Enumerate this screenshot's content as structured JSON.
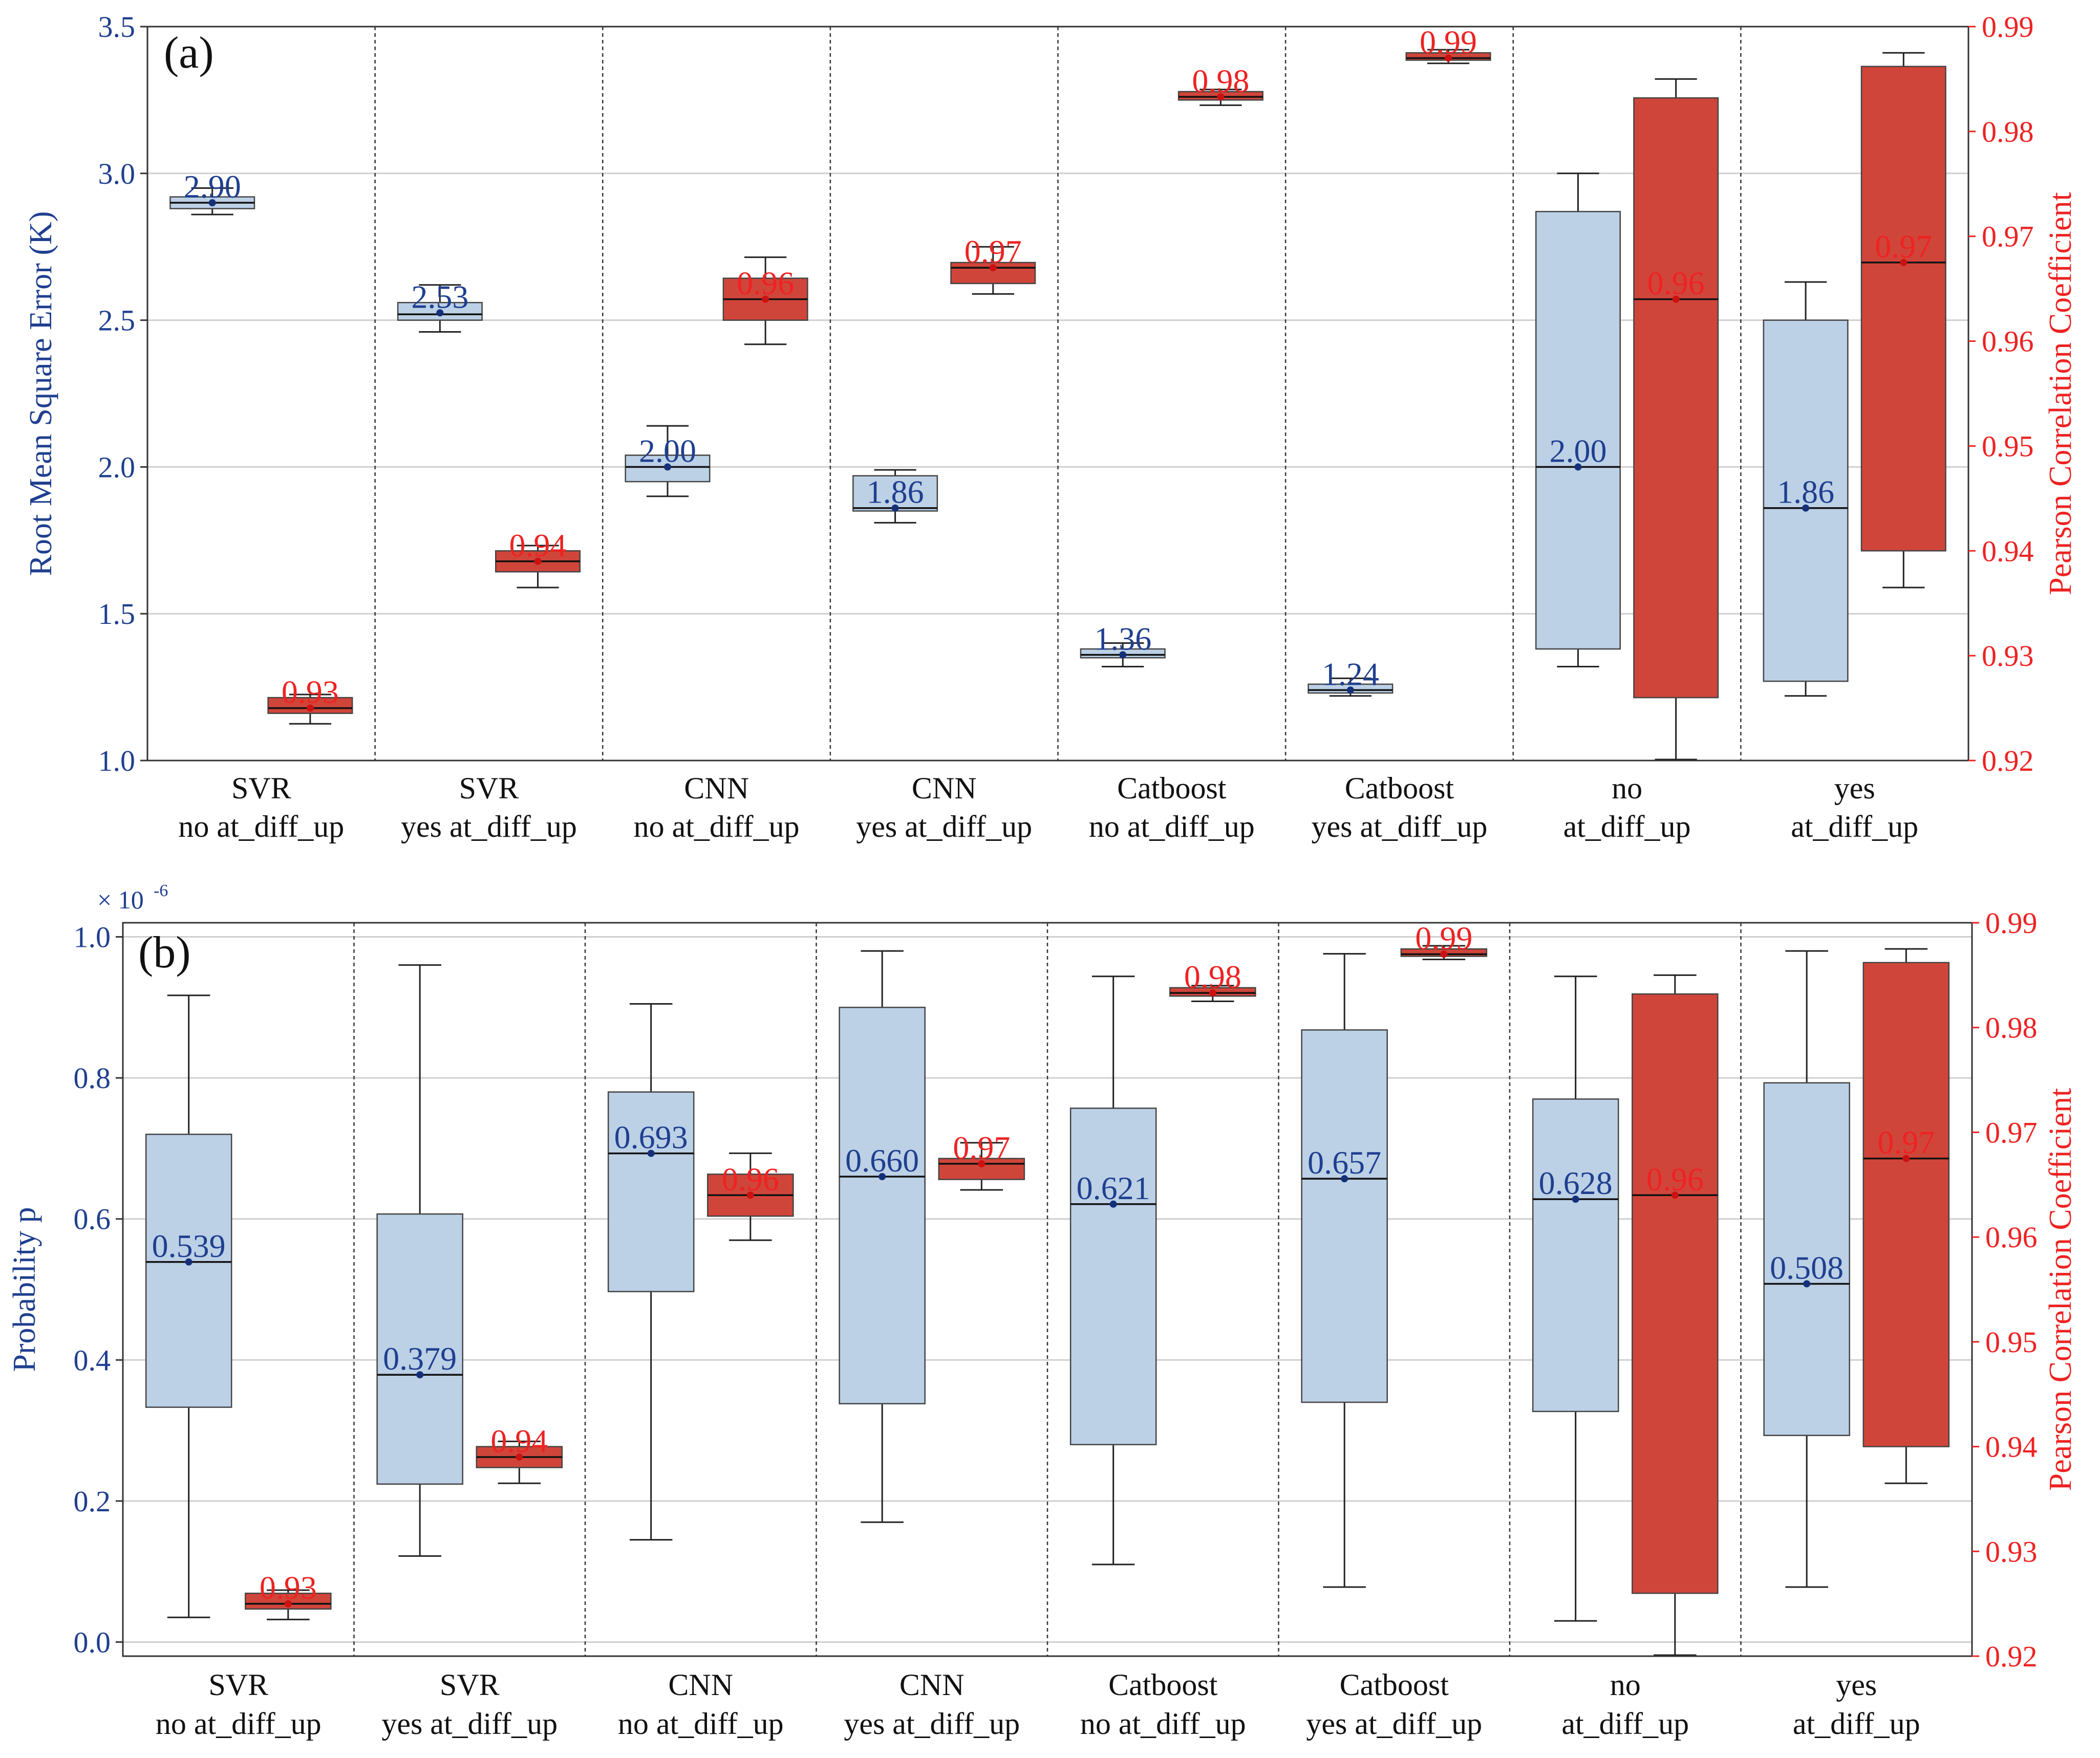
{
  "chart_data": [
    {
      "type": "box",
      "panel_label": "(a)",
      "categories": [
        [
          "SVR",
          "no at_diff_up"
        ],
        [
          "SVR",
          "yes at_diff_up"
        ],
        [
          "CNN",
          "no at_diff_up"
        ],
        [
          "CNN",
          "yes at_diff_up"
        ],
        [
          "Catboost",
          "no at_diff_up"
        ],
        [
          "Catboost",
          "yes at_diff_up"
        ],
        [
          "no",
          "at_diff_up"
        ],
        [
          "yes",
          "at_diff_up"
        ]
      ],
      "left_axis": {
        "label": "Root Mean Square Error (K)",
        "ylim": [
          1.0,
          3.5
        ],
        "ticks": [
          1.0,
          1.5,
          2.0,
          2.5,
          3.0,
          3.5
        ],
        "tick_labels": [
          "1.0",
          "1.5",
          "2.0",
          "2.5",
          "3.0",
          "3.5"
        ],
        "color": "#1f3f8f"
      },
      "right_axis": {
        "label": "Pearson Correlation Coefficient",
        "ylim": [
          0.92,
          0.99
        ],
        "ticks": [
          0.92,
          0.93,
          0.94,
          0.95,
          0.96,
          0.97,
          0.98,
          0.99
        ],
        "tick_labels": [
          "0.92",
          "0.93",
          "0.94",
          "0.95",
          "0.96",
          "0.97",
          "0.98",
          "0.99"
        ],
        "color": "#ee2222"
      },
      "series": [
        {
          "axis": "left",
          "fill": "#bcd0e6",
          "label_color": "#1f3f8f",
          "boxes": [
            {
              "whisker_low": 2.86,
              "q1": 2.88,
              "median": 2.9,
              "q3": 2.92,
              "whisker_high": 2.95,
              "mean": 2.9,
              "label": "2.90"
            },
            {
              "whisker_low": 2.46,
              "q1": 2.5,
              "median": 2.52,
              "q3": 2.56,
              "whisker_high": 2.62,
              "mean": 2.525,
              "label": "2.53"
            },
            {
              "whisker_low": 1.9,
              "q1": 1.95,
              "median": 2.0,
              "q3": 2.04,
              "whisker_high": 2.14,
              "mean": 2.0,
              "label": "2.00"
            },
            {
              "whisker_low": 1.81,
              "q1": 1.85,
              "median": 1.86,
              "q3": 1.97,
              "whisker_high": 1.99,
              "mean": 1.86,
              "label": "1.86"
            },
            {
              "whisker_low": 1.32,
              "q1": 1.35,
              "median": 1.36,
              "q3": 1.38,
              "whisker_high": 1.4,
              "mean": 1.36,
              "label": "1.36"
            },
            {
              "whisker_low": 1.22,
              "q1": 1.23,
              "median": 1.24,
              "q3": 1.26,
              "whisker_high": 1.28,
              "mean": 1.24,
              "label": "1.24"
            },
            {
              "whisker_low": 1.32,
              "q1": 1.38,
              "median": 2.0,
              "q3": 2.87,
              "whisker_high": 3.0,
              "mean": 2.0,
              "label": "2.00"
            },
            {
              "whisker_low": 1.22,
              "q1": 1.27,
              "median": 1.86,
              "q3": 2.5,
              "whisker_high": 2.63,
              "mean": 1.86,
              "label": "1.86"
            }
          ]
        },
        {
          "axis": "right",
          "fill": "#d0453a",
          "label_color": "#ee2222",
          "boxes": [
            {
              "whisker_low": 0.9235,
              "q1": 0.9245,
              "median": 0.925,
              "q3": 0.926,
              "whisker_high": 0.9263,
              "mean": 0.925,
              "label": "0.93"
            },
            {
              "whisker_low": 0.9365,
              "q1": 0.938,
              "median": 0.939,
              "q3": 0.94,
              "whisker_high": 0.9405,
              "mean": 0.939,
              "label": "0.94"
            },
            {
              "whisker_low": 0.9597,
              "q1": 0.962,
              "median": 0.964,
              "q3": 0.966,
              "whisker_high": 0.968,
              "mean": 0.964,
              "label": "0.96"
            },
            {
              "whisker_low": 0.9645,
              "q1": 0.9655,
              "median": 0.967,
              "q3": 0.9675,
              "whisker_high": 0.969,
              "mean": 0.967,
              "label": "0.97"
            },
            {
              "whisker_low": 0.9825,
              "q1": 0.983,
              "median": 0.9833,
              "q3": 0.9838,
              "whisker_high": 0.984,
              "mean": 0.9833,
              "label": "0.98"
            },
            {
              "whisker_low": 0.9865,
              "q1": 0.9868,
              "median": 0.987,
              "q3": 0.9875,
              "whisker_high": 0.9878,
              "mean": 0.987,
              "label": "0.99"
            },
            {
              "whisker_low": 0.9201,
              "q1": 0.926,
              "median": 0.964,
              "q3": 0.9832,
              "whisker_high": 0.985,
              "mean": 0.964,
              "label": "0.96"
            },
            {
              "whisker_low": 0.9365,
              "q1": 0.94,
              "median": 0.9675,
              "q3": 0.9862,
              "whisker_high": 0.9875,
              "mean": 0.9675,
              "label": "0.97"
            }
          ]
        }
      ]
    },
    {
      "type": "box",
      "panel_label": "(b)",
      "categories": [
        [
          "SVR",
          "no at_diff_up"
        ],
        [
          "SVR",
          "yes at_diff_up"
        ],
        [
          "CNN",
          "no at_diff_up"
        ],
        [
          "CNN",
          "yes at_diff_up"
        ],
        [
          "Catboost",
          "no at_diff_up"
        ],
        [
          "Catboost",
          "yes at_diff_up"
        ],
        [
          "no",
          "at_diff_up"
        ],
        [
          "yes",
          "at_diff_up"
        ]
      ],
      "left_axis": {
        "label": "Probability p",
        "multiplier": "× 10",
        "multiplier_exp": "-6",
        "ylim": [
          -0.02,
          1.02
        ],
        "ticks": [
          0.0,
          0.2,
          0.4,
          0.6,
          0.8,
          1.0
        ],
        "tick_labels": [
          "0.0",
          "0.2",
          "0.4",
          "0.6",
          "0.8",
          "1.0"
        ],
        "color": "#1f3f8f"
      },
      "right_axis": {
        "label": "Pearson Correlation Coefficient",
        "ylim": [
          0.92,
          0.99
        ],
        "ticks": [
          0.92,
          0.93,
          0.94,
          0.95,
          0.96,
          0.97,
          0.98,
          0.99
        ],
        "tick_labels": [
          "0.92",
          "0.93",
          "0.94",
          "0.95",
          "0.96",
          "0.97",
          "0.98",
          "0.99"
        ],
        "color": "#ee2222"
      },
      "series": [
        {
          "axis": "left",
          "fill": "#bcd0e6",
          "label_color": "#1f3f8f",
          "boxes": [
            {
              "whisker_low": 0.035,
              "q1": 0.333,
              "median": 0.539,
              "q3": 0.72,
              "whisker_high": 0.917,
              "mean": 0.539,
              "label": "0.539"
            },
            {
              "whisker_low": 0.122,
              "q1": 0.224,
              "median": 0.379,
              "q3": 0.607,
              "whisker_high": 0.96,
              "mean": 0.379,
              "label": "0.379"
            },
            {
              "whisker_low": 0.145,
              "q1": 0.497,
              "median": 0.693,
              "q3": 0.78,
              "whisker_high": 0.905,
              "mean": 0.693,
              "label": "0.693"
            },
            {
              "whisker_low": 0.17,
              "q1": 0.338,
              "median": 0.66,
              "q3": 0.9,
              "whisker_high": 0.98,
              "mean": 0.66,
              "label": "0.660"
            },
            {
              "whisker_low": 0.11,
              "q1": 0.28,
              "median": 0.621,
              "q3": 0.757,
              "whisker_high": 0.944,
              "mean": 0.621,
              "label": "0.621"
            },
            {
              "whisker_low": 0.078,
              "q1": 0.34,
              "median": 0.657,
              "q3": 0.868,
              "whisker_high": 0.976,
              "mean": 0.657,
              "label": "0.657"
            },
            {
              "whisker_low": 0.03,
              "q1": 0.327,
              "median": 0.628,
              "q3": 0.77,
              "whisker_high": 0.944,
              "mean": 0.628,
              "label": "0.628"
            },
            {
              "whisker_low": 0.078,
              "q1": 0.293,
              "median": 0.508,
              "q3": 0.793,
              "whisker_high": 0.98,
              "mean": 0.508,
              "label": "0.508"
            }
          ]
        },
        {
          "axis": "right",
          "fill": "#d0453a",
          "label_color": "#ee2222",
          "boxes": [
            {
              "whisker_low": 0.9235,
              "q1": 0.9245,
              "median": 0.925,
              "q3": 0.926,
              "whisker_high": 0.9263,
              "mean": 0.925,
              "label": "0.93"
            },
            {
              "whisker_low": 0.9365,
              "q1": 0.938,
              "median": 0.939,
              "q3": 0.94,
              "whisker_high": 0.9405,
              "mean": 0.939,
              "label": "0.94"
            },
            {
              "whisker_low": 0.9597,
              "q1": 0.962,
              "median": 0.964,
              "q3": 0.966,
              "whisker_high": 0.968,
              "mean": 0.964,
              "label": "0.96"
            },
            {
              "whisker_low": 0.9645,
              "q1": 0.9655,
              "median": 0.967,
              "q3": 0.9675,
              "whisker_high": 0.969,
              "mean": 0.967,
              "label": "0.97"
            },
            {
              "whisker_low": 0.9825,
              "q1": 0.983,
              "median": 0.9833,
              "q3": 0.9838,
              "whisker_high": 0.984,
              "mean": 0.9833,
              "label": "0.98"
            },
            {
              "whisker_low": 0.9865,
              "q1": 0.9868,
              "median": 0.987,
              "q3": 0.9875,
              "whisker_high": 0.9878,
              "mean": 0.987,
              "label": "0.99"
            },
            {
              "whisker_low": 0.9201,
              "q1": 0.926,
              "median": 0.964,
              "q3": 0.9832,
              "whisker_high": 0.985,
              "mean": 0.964,
              "label": "0.96"
            },
            {
              "whisker_low": 0.9365,
              "q1": 0.94,
              "median": 0.9675,
              "q3": 0.9862,
              "whisker_high": 0.9875,
              "mean": 0.9675,
              "label": "0.97"
            }
          ]
        }
      ]
    }
  ]
}
